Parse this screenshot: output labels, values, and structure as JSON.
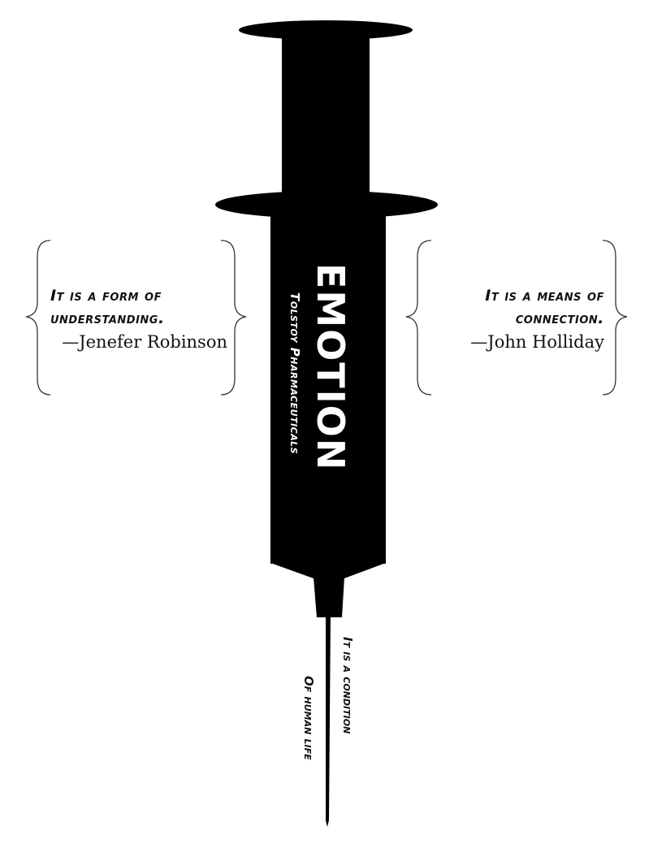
{
  "syringe": {
    "product_name": "EMOTION",
    "manufacturer": "Tolstoy Pharmaceuticals"
  },
  "quotes": [
    {
      "line1": "It is a form of",
      "line2": "understanding.",
      "author": "—Jenefer Robinson"
    },
    {
      "line1": "It is a means of",
      "line2": "connection.",
      "author": "—John Holliday"
    }
  ],
  "needle_text": {
    "line1": "It is a condition",
    "line2": "Of human life"
  },
  "colors": {
    "ink": "#000000",
    "background": "#ffffff",
    "label_text": "#ffffff"
  }
}
